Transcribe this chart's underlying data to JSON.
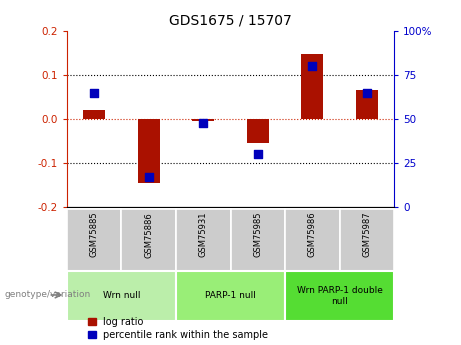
{
  "title": "GDS1675 / 15707",
  "samples": [
    "GSM75885",
    "GSM75886",
    "GSM75931",
    "GSM75985",
    "GSM75986",
    "GSM75987"
  ],
  "log_ratio": [
    0.02,
    -0.145,
    -0.005,
    -0.055,
    0.148,
    0.065
  ],
  "percentile_rank": [
    65,
    17,
    48,
    30,
    80,
    65
  ],
  "ylim_left": [
    -0.2,
    0.2
  ],
  "ylim_right": [
    0,
    100
  ],
  "yticks_left": [
    -0.2,
    -0.1,
    0.0,
    0.1,
    0.2
  ],
  "yticks_right": [
    0,
    25,
    50,
    75,
    100
  ],
  "hlines": [
    -0.1,
    0.0,
    0.1
  ],
  "groups": [
    {
      "label": "Wrn null",
      "indices": [
        0,
        1
      ],
      "color": "#bbeeaa"
    },
    {
      "label": "PARP-1 null",
      "indices": [
        2,
        3
      ],
      "color": "#99ee77"
    },
    {
      "label": "Wrn PARP-1 double\nnull",
      "indices": [
        4,
        5
      ],
      "color": "#55dd33"
    }
  ],
  "bar_color": "#aa1100",
  "dot_color": "#0000bb",
  "bar_width": 0.4,
  "dot_size": 28,
  "left_axis_color": "#cc2200",
  "right_axis_color": "#0000cc",
  "bg_color": "#ffffff",
  "sample_box_color": "#cccccc",
  "zero_line_color": "#cc2200",
  "genotype_label": "genotype/variation",
  "legend_items": [
    "log ratio",
    "percentile rank within the sample"
  ]
}
